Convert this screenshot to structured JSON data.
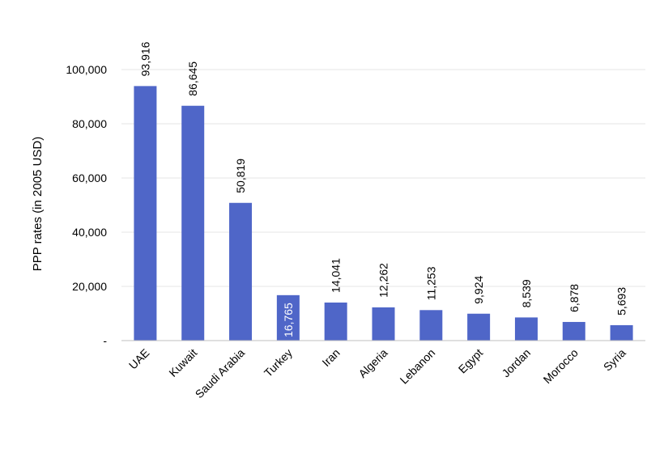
{
  "chart_data": {
    "type": "bar",
    "ylabel": "PPP rates (in 2005 USD)",
    "ylim": [
      0,
      100000
    ],
    "yticks": [
      {
        "value": 0,
        "label": "-"
      },
      {
        "value": 20000,
        "label": "20,000"
      },
      {
        "value": 40000,
        "label": "40,000"
      },
      {
        "value": 60000,
        "label": "60,000"
      },
      {
        "value": 80000,
        "label": "80,000"
      },
      {
        "value": 100000,
        "label": "100,000"
      }
    ],
    "grid": true,
    "bar_color": "#4f66c8",
    "grid_color": "#e6e6e6",
    "categories": [
      "UAE",
      "Kuwait",
      "Saudi Arabia",
      "Turkey",
      "Iran",
      "Algeria",
      "Lebanon",
      "Egypt",
      "Jordan",
      "Morocco",
      "Syria"
    ],
    "values": [
      93916,
      86645,
      50819,
      16765,
      14041,
      12262,
      11253,
      9924,
      8539,
      6878,
      5693
    ],
    "value_labels": [
      "93,916",
      "86,645",
      "50,819",
      "16,765",
      "14,041",
      "12,262",
      "11,253",
      "9,924",
      "8,539",
      "6,878",
      "5,693"
    ]
  }
}
